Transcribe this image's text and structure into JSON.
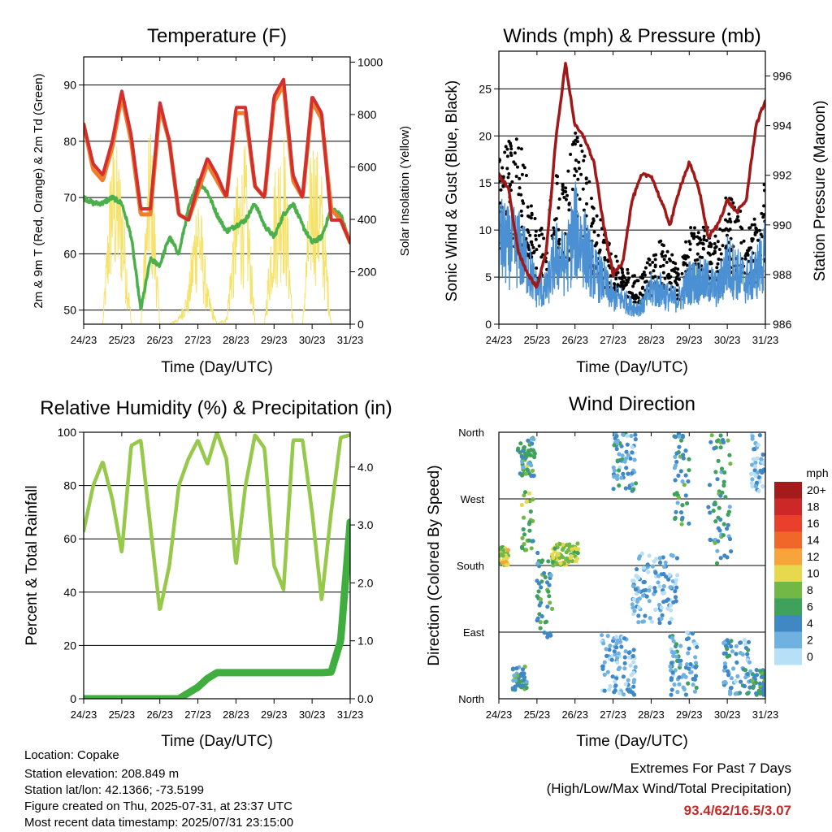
{
  "ticks_x": [
    "24/23",
    "25/23",
    "26/23",
    "27/23",
    "28/23",
    "29/23",
    "30/23",
    "31/23"
  ],
  "x_label": "Time (Day/UTC)",
  "panels": {
    "temp": {
      "title": "Temperature (F)",
      "ylabel_left": "2m & 9m T (Red, Orange) & 2m Td (Green)",
      "ylabel_right": "Solar Insolation (Yellow)",
      "left_ticks": [
        "50",
        "60",
        "70",
        "80",
        "90"
      ],
      "right_ticks": [
        "0",
        "200",
        "400",
        "600",
        "800",
        "1000"
      ]
    },
    "wind": {
      "title": "Winds (mph) & Pressure (mb)",
      "ylabel_left": "Sonic Wind & Gust (Blue, Black)",
      "ylabel_right": "Station Pressure (Maroon)",
      "left_ticks": [
        "0",
        "5",
        "10",
        "15",
        "20",
        "25"
      ],
      "right_ticks": [
        "986",
        "988",
        "990",
        "992",
        "994",
        "996"
      ]
    },
    "rh": {
      "title": "Relative Humidity (%) & Precipitation (in)",
      "ylabel_left": "Percent & Total Rainfall",
      "left_ticks": [
        "0",
        "20",
        "40",
        "60",
        "80",
        "100"
      ],
      "right_ticks": [
        "0.0",
        "1.0",
        "2.0",
        "3.0",
        "4.0"
      ]
    },
    "dir": {
      "title": "Wind Direction",
      "ylabel_left": "Direction (Colored By Speed)",
      "left_ticks": [
        "North",
        "East",
        "South",
        "West",
        "North"
      ],
      "legend_title": "mph",
      "legend_labels": [
        "20+",
        "18",
        "16",
        "14",
        "12",
        "10",
        "8",
        "6",
        "4",
        "2",
        "0"
      ]
    }
  },
  "footer": {
    "location": "Location: Copake",
    "elevation": "Station elevation: 208.849 m",
    "latlon": "Station lat/lon: 42.1366; -73.5199",
    "created": "Figure created on Thu, 2025-07-31, at 23:37 UTC",
    "recent": "Most recent data timestamp: 2025/07/31 23:15:00",
    "extremes_title": "Extremes For Past 7 Days",
    "extremes_sub": "(High/Low/Max Wind/Total Precipitation)",
    "extremes_values": "93.4/62/16.5/3.07"
  },
  "colors": {
    "temp2m": "#d32f2f",
    "temp9m": "#ef7d2a",
    "dewpoint": "#4bb04b",
    "solar": "#f5e26a",
    "wind": "#4a90d2",
    "gust": "#000000",
    "pressure": "#a01818",
    "rh": "#96c84a",
    "precip": "#3fae3f",
    "extremes": "#c62828",
    "speed_scale": [
      "#a51b1b",
      "#cc2828",
      "#e8402a",
      "#f0672a",
      "#f7a43a",
      "#e6d94e",
      "#72b845",
      "#3fa25c",
      "#3f88c5",
      "#6fb2e2",
      "#b7dff5"
    ]
  },
  "chart_data": [
    {
      "type": "line",
      "title": "Temperature (F)",
      "xlabel": "Time (Day/UTC)",
      "ylabel": "2m & 9m T (Red, Orange) & 2m Td (Green)",
      "ylabel_right": "Solar Insolation (Yellow)",
      "x_ticks": [
        "24/23",
        "25/23",
        "26/23",
        "27/23",
        "28/23",
        "29/23",
        "30/23",
        "31/23"
      ],
      "ylim": [
        47.5,
        95
      ],
      "ylim_right": [
        0,
        1020
      ],
      "x": [
        0,
        0.25,
        0.5,
        0.75,
        1,
        1.25,
        1.5,
        1.75,
        2,
        2.25,
        2.5,
        2.75,
        3,
        3.25,
        3.5,
        3.75,
        4,
        4.25,
        4.5,
        4.75,
        5,
        5.25,
        5.5,
        5.75,
        6,
        6.25,
        6.5,
        6.75,
        7
      ],
      "series": [
        {
          "values": [
            83,
            76,
            74,
            80,
            89,
            81,
            68,
            68,
            87,
            80,
            67,
            66,
            72,
            77,
            74,
            70,
            86,
            86,
            72,
            70,
            88,
            91,
            74,
            70,
            88,
            85,
            66,
            66,
            62
          ]
        },
        {
          "values": [
            83,
            75,
            73,
            79,
            88,
            80,
            67,
            67,
            86,
            80,
            67,
            66,
            71,
            76,
            73,
            70,
            85,
            85,
            72,
            70,
            87,
            90,
            73,
            70,
            87,
            84,
            68,
            66,
            62
          ]
        },
        {
          "values": [
            70,
            69,
            69,
            70,
            69,
            63,
            50,
            59,
            58,
            63,
            60,
            68,
            73,
            71,
            67,
            64,
            65,
            66,
            69,
            65,
            63,
            67,
            69,
            65,
            62,
            63,
            68,
            67,
            62
          ]
        },
        {
          "values": [
            0,
            0,
            0,
            780,
            600,
            0,
            0,
            850,
            0,
            0,
            30,
            150,
            600,
            150,
            0,
            30,
            550,
            700,
            0,
            0,
            600,
            800,
            0,
            0,
            780,
            600,
            0,
            0,
            0
          ]
        }
      ]
    },
    {
      "type": "line",
      "title": "Winds (mph) & Pressure (mb)",
      "xlabel": "Time (Day/UTC)",
      "ylabel": "Sonic Wind & Gust (Blue, Black)",
      "ylabel_right": "Station Pressure (Maroon)",
      "x_ticks": [
        "24/23",
        "25/23",
        "26/23",
        "27/23",
        "28/23",
        "29/23",
        "30/23",
        "31/23"
      ],
      "ylim": [
        0,
        29
      ],
      "ylim_right": [
        986,
        997
      ],
      "x": [
        0,
        0.25,
        0.5,
        0.75,
        1,
        1.25,
        1.5,
        1.75,
        2,
        2.25,
        2.5,
        2.75,
        3,
        3.25,
        3.5,
        3.75,
        4,
        4.25,
        4.5,
        4.75,
        5,
        5.25,
        5.5,
        5.75,
        6,
        6.25,
        6.5,
        6.75,
        7
      ],
      "series": [
        {
          "values": [
            10,
            9,
            9,
            7,
            4,
            4,
            8,
            7,
            11,
            9,
            6,
            5,
            3,
            3,
            2,
            2,
            4,
            4,
            3,
            3,
            5,
            5,
            5,
            4,
            7,
            6,
            5,
            6,
            8
          ]
        },
        {
          "values": [
            14,
            15,
            16,
            12,
            8,
            8,
            13,
            12,
            16,
            14,
            10,
            8,
            6,
            5,
            4,
            4,
            6,
            7,
            6,
            5,
            8,
            8,
            8,
            7,
            11,
            10,
            8,
            9,
            12
          ]
        },
        {
          "values": [
            992,
            991.5,
            989,
            988,
            987.5,
            989,
            993.5,
            996.5,
            994,
            993.5,
            992.5,
            990,
            988,
            988.5,
            991,
            992,
            992,
            991,
            990,
            991.5,
            992.5,
            991.5,
            989.5,
            990,
            991,
            990.5,
            991,
            994,
            995
          ]
        }
      ]
    },
    {
      "type": "line",
      "title": "Relative Humidity (%) & Precipitation (in)",
      "xlabel": "Time (Day/UTC)",
      "ylabel": "Percent & Total Rainfall",
      "x_ticks": [
        "24/23",
        "25/23",
        "26/23",
        "27/23",
        "28/23",
        "29/23",
        "30/23",
        "31/23"
      ],
      "ylim": [
        0,
        100
      ],
      "ylim_right": [
        0,
        4.6
      ],
      "x": [
        0,
        0.25,
        0.5,
        0.75,
        1,
        1.25,
        1.5,
        1.75,
        2,
        2.25,
        2.5,
        2.75,
        3,
        3.25,
        3.5,
        3.75,
        4,
        4.25,
        4.5,
        4.75,
        5,
        5.25,
        5.5,
        5.75,
        6,
        6.25,
        6.5,
        6.75,
        7
      ],
      "series": [
        {
          "values": [
            63,
            80,
            89,
            75,
            55,
            95,
            97,
            65,
            33,
            50,
            80,
            90,
            97,
            88,
            100,
            90,
            50,
            80,
            99,
            94,
            50,
            41,
            97,
            97,
            70,
            37,
            70,
            98,
            99
          ]
        },
        {
          "values": [
            0,
            0,
            0,
            0,
            0,
            0,
            0,
            0,
            0,
            0,
            0,
            0.1,
            0.2,
            0.35,
            0.45,
            0.45,
            0.45,
            0.45,
            0.45,
            0.45,
            0.45,
            0.45,
            0.45,
            0.45,
            0.45,
            0.45,
            0.46,
            1.0,
            3.05
          ]
        }
      ]
    },
    {
      "type": "scatter",
      "title": "Wind Direction",
      "xlabel": "Time (Day/UTC)",
      "ylabel": "Direction (Colored By Speed)",
      "x_ticks": [
        "24/23",
        "25/23",
        "26/23",
        "27/23",
        "28/23",
        "29/23",
        "30/23",
        "31/23"
      ],
      "y_ticks": [
        "North",
        "East",
        "South",
        "West",
        "North"
      ],
      "ylim": [
        0,
        360
      ],
      "color_scale": {
        "label": "mph",
        "levels": [
          0,
          2,
          4,
          6,
          8,
          10,
          12,
          14,
          16,
          18,
          20
        ]
      },
      "clusters": [
        {
          "x": [
            0,
            0.25
          ],
          "y": [
            180,
            205
          ],
          "speed": 9
        },
        {
          "x": [
            0.35,
            0.75
          ],
          "y": [
            10,
            45
          ],
          "speed": 5
        },
        {
          "x": [
            0.6,
            0.9
          ],
          "y": [
            200,
            330
          ],
          "speed": 7
        },
        {
          "x": [
            0.5,
            0.95
          ],
          "y": [
            300,
            355
          ],
          "speed": 5
        },
        {
          "x": [
            1.0,
            1.4
          ],
          "y": [
            80,
            200
          ],
          "speed": 5
        },
        {
          "x": [
            1.4,
            2.1
          ],
          "y": [
            180,
            210
          ],
          "speed": 9
        },
        {
          "x": [
            2.7,
            3.6
          ],
          "y": [
            5,
            90
          ],
          "speed": 2
        },
        {
          "x": [
            3.0,
            3.6
          ],
          "y": [
            280,
            360
          ],
          "speed": 3
        },
        {
          "x": [
            3.5,
            4.7
          ],
          "y": [
            100,
            200
          ],
          "speed": 2
        },
        {
          "x": [
            4.5,
            5.2
          ],
          "y": [
            5,
            90
          ],
          "speed": 3
        },
        {
          "x": [
            4.6,
            5.0
          ],
          "y": [
            230,
            360
          ],
          "speed": 5
        },
        {
          "x": [
            5.5,
            6.1
          ],
          "y": [
            180,
            360
          ],
          "speed": 5
        },
        {
          "x": [
            5.9,
            6.6
          ],
          "y": [
            5,
            80
          ],
          "speed": 3
        },
        {
          "x": [
            6.6,
            7.0
          ],
          "y": [
            5,
            40
          ],
          "speed": 5
        },
        {
          "x": [
            6.6,
            7.0
          ],
          "y": [
            280,
            360
          ],
          "speed": 2
        }
      ]
    }
  ]
}
